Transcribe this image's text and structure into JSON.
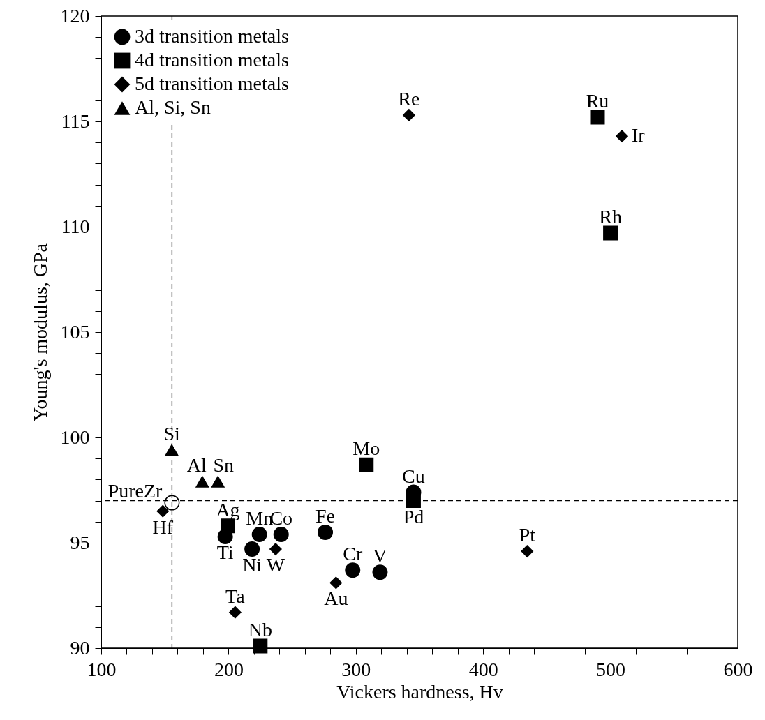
{
  "chart_data": {
    "type": "scatter",
    "xlabel": "Vickers hardness, Hv",
    "ylabel": "Young's modulus, GPa",
    "xlim": [
      100,
      600
    ],
    "xticks": [
      100,
      {
        "value": 120,
        "label": null
      },
      {
        "value": 140,
        "label": null
      },
      {
        "value": 160,
        "label": null
      },
      {
        "value": 180,
        "label": null
      },
      200,
      {
        "value": 220,
        "label": null
      },
      {
        "value": 240,
        "label": null
      },
      {
        "value": 260,
        "label": null
      },
      {
        "value": 280,
        "label": null
      },
      300,
      {
        "value": 320,
        "label": null
      },
      {
        "value": 340,
        "label": null
      },
      {
        "value": 360,
        "label": null
      },
      {
        "value": 380,
        "label": null
      },
      400,
      {
        "value": 420,
        "label": null
      },
      {
        "value": 440,
        "label": null
      },
      {
        "value": 460,
        "label": null
      },
      {
        "value": 480,
        "label": null
      },
      500,
      {
        "value": 520,
        "label": null
      },
      {
        "value": 540,
        "label": null
      },
      {
        "value": 560,
        "label": null
      },
      {
        "value": 580,
        "label": null
      },
      600
    ],
    "ylim": [
      90,
      120
    ],
    "yticks": [
      90,
      {
        "value": 91,
        "label": null
      },
      {
        "value": 92,
        "label": null
      },
      {
        "value": 93,
        "label": null
      },
      {
        "value": 94,
        "label": null
      },
      95,
      {
        "value": 96,
        "label": null
      },
      {
        "value": 97,
        "label": null
      },
      {
        "value": 98,
        "label": null
      },
      {
        "value": 99,
        "label": null
      },
      100,
      {
        "value": 101,
        "label": null
      },
      {
        "value": 102,
        "label": null
      },
      {
        "value": 103,
        "label": null
      },
      {
        "value": 104,
        "label": null
      },
      105,
      {
        "value": 106,
        "label": null
      },
      {
        "value": 107,
        "label": null
      },
      {
        "value": 108,
        "label": null
      },
      {
        "value": 109,
        "label": null
      },
      110,
      {
        "value": 111,
        "label": null
      },
      {
        "value": 112,
        "label": null
      },
      {
        "value": 113,
        "label": null
      },
      {
        "value": 114,
        "label": null
      },
      115,
      {
        "value": 116,
        "label": null
      },
      {
        "value": 117,
        "label": null
      },
      {
        "value": 118,
        "label": null
      },
      {
        "value": 119,
        "label": null
      },
      120
    ],
    "grid": false,
    "legend": "top left",
    "series": [
      {
        "name": "3d transition metals",
        "color": "#000000",
        "marker": "circle",
        "x": [
          197.4,
          224.3,
          241.3,
          218.5,
          276,
          297.5,
          319,
          345.3
        ],
        "values": [
          95.3,
          95.4,
          95.4,
          94.7,
          95.5,
          93.7,
          93.6,
          97.4
        ]
      },
      {
        "name": "4d transition metals",
        "color": "#000000",
        "marker": "square",
        "x": [
          199.5,
          224.9,
          308.2,
          345.3,
          489.8,
          500
        ],
        "values": [
          95.8,
          90.1,
          98.7,
          97.0,
          115.2,
          109.7
        ]
      },
      {
        "name": "5d transition metals",
        "color": "#000000",
        "marker": "diamond",
        "x": [
          148.4,
          237,
          284.4,
          205.2,
          341.7,
          509,
          434.6
        ],
        "values": [
          96.5,
          94.7,
          93.1,
          91.7,
          115.3,
          114.3,
          94.6
        ]
      },
      {
        "name": "Al, Si, Sn",
        "color": "#000000",
        "marker": "triangle",
        "x": [
          179.4,
          155.4,
          191.7
        ],
        "values": [
          97.9,
          99.4,
          97.9
        ]
      },
      {
        "color": "#ffffff",
        "marker": "circle",
        "x": [
          155.6
        ],
        "values": [
          96.9
        ]
      }
    ],
    "ref_lines": [
      {
        "axis": "x",
        "value": 155.6,
        "line_style": "dashed",
        "color": "#000000"
      },
      {
        "axis": "y",
        "value": 97,
        "line_style": "dashed",
        "color": "#000000"
      }
    ],
    "annotations": [
      {
        "text": "Ti",
        "x": 197.4,
        "y": 95.3
      },
      {
        "text": "Mn",
        "x": 224.3,
        "y": 95.4
      },
      {
        "text": "Co",
        "x": 241.3,
        "y": 95.4
      },
      {
        "text": "Ni",
        "x": 218.5,
        "y": 94.7
      },
      {
        "text": "Fe",
        "x": 276,
        "y": 95.5
      },
      {
        "text": "Cr",
        "x": 297.5,
        "y": 93.7
      },
      {
        "text": "V",
        "x": 319,
        "y": 93.6
      },
      {
        "text": "Cu",
        "x": 345.3,
        "y": 97.4
      },
      {
        "text": "Ag",
        "x": 199.5,
        "y": 95.8
      },
      {
        "text": "Nb",
        "x": 224.9,
        "y": 90.1
      },
      {
        "text": "Mo",
        "x": 308.2,
        "y": 98.7
      },
      {
        "text": "Pd",
        "x": 345.3,
        "y": 97.0
      },
      {
        "text": "Ru",
        "x": 489.8,
        "y": 115.2
      },
      {
        "text": "Rh",
        "x": 500,
        "y": 109.7
      },
      {
        "text": "Hf",
        "x": 148.4,
        "y": 96.5
      },
      {
        "text": "W",
        "x": 237,
        "y": 94.7
      },
      {
        "text": "Au",
        "x": 284.4,
        "y": 93.1
      },
      {
        "text": "Ta",
        "x": 205.2,
        "y": 91.7
      },
      {
        "text": "Re",
        "x": 341.7,
        "y": 115.3
      },
      {
        "text": "Ir",
        "x": 509,
        "y": 114.3
      },
      {
        "text": "Pt",
        "x": 434.6,
        "y": 94.6
      },
      {
        "text": "Al",
        "x": 179.4,
        "y": 97.9
      },
      {
        "text": "Si",
        "x": 155.4,
        "y": 99.4
      },
      {
        "text": "Sn",
        "x": 191.7,
        "y": 97.9
      },
      {
        "text": "PureZr",
        "x": 155.6,
        "y": 96.9
      }
    ]
  }
}
